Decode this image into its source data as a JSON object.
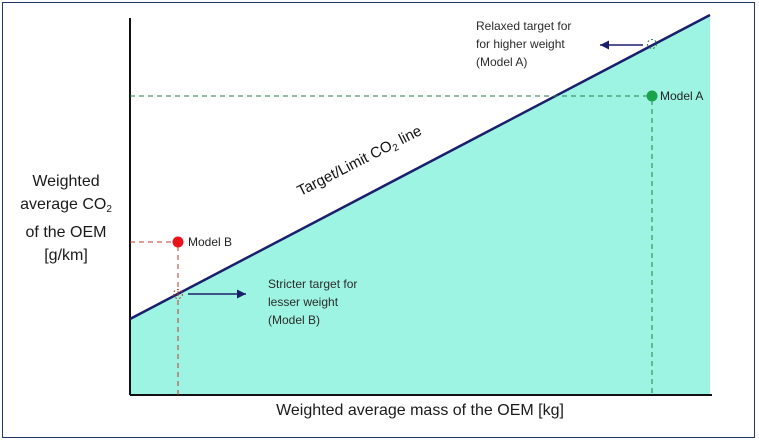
{
  "axes": {
    "ylabel_lines": [
      "Weighted",
      "average CO",
      "2",
      "of the OEM",
      "[g/km]"
    ],
    "xlabel": "Weighted average mass of the OEM [kg]"
  },
  "line_label": {
    "prefix": "Target/Limit CO",
    "sub": "2",
    "suffix": " line"
  },
  "points": {
    "model_a": {
      "label": "Model A",
      "color": "#1aa34a"
    },
    "model_b": {
      "label": "Model B",
      "color": "#e8141b"
    }
  },
  "annotations": {
    "relaxed": [
      "Relaxed target for",
      "for higher weight",
      "(Model A)"
    ],
    "stricter": [
      "Stricter target for",
      "lesser weight",
      "(Model B)"
    ]
  },
  "colors": {
    "fill": "#9ef4e2",
    "target_line": "#1b1f6b",
    "arrow": "#1b1f6b",
    "guide_a": "#2a7a4a",
    "guide_b": "#c0392b",
    "frame": "#1f3864"
  }
}
